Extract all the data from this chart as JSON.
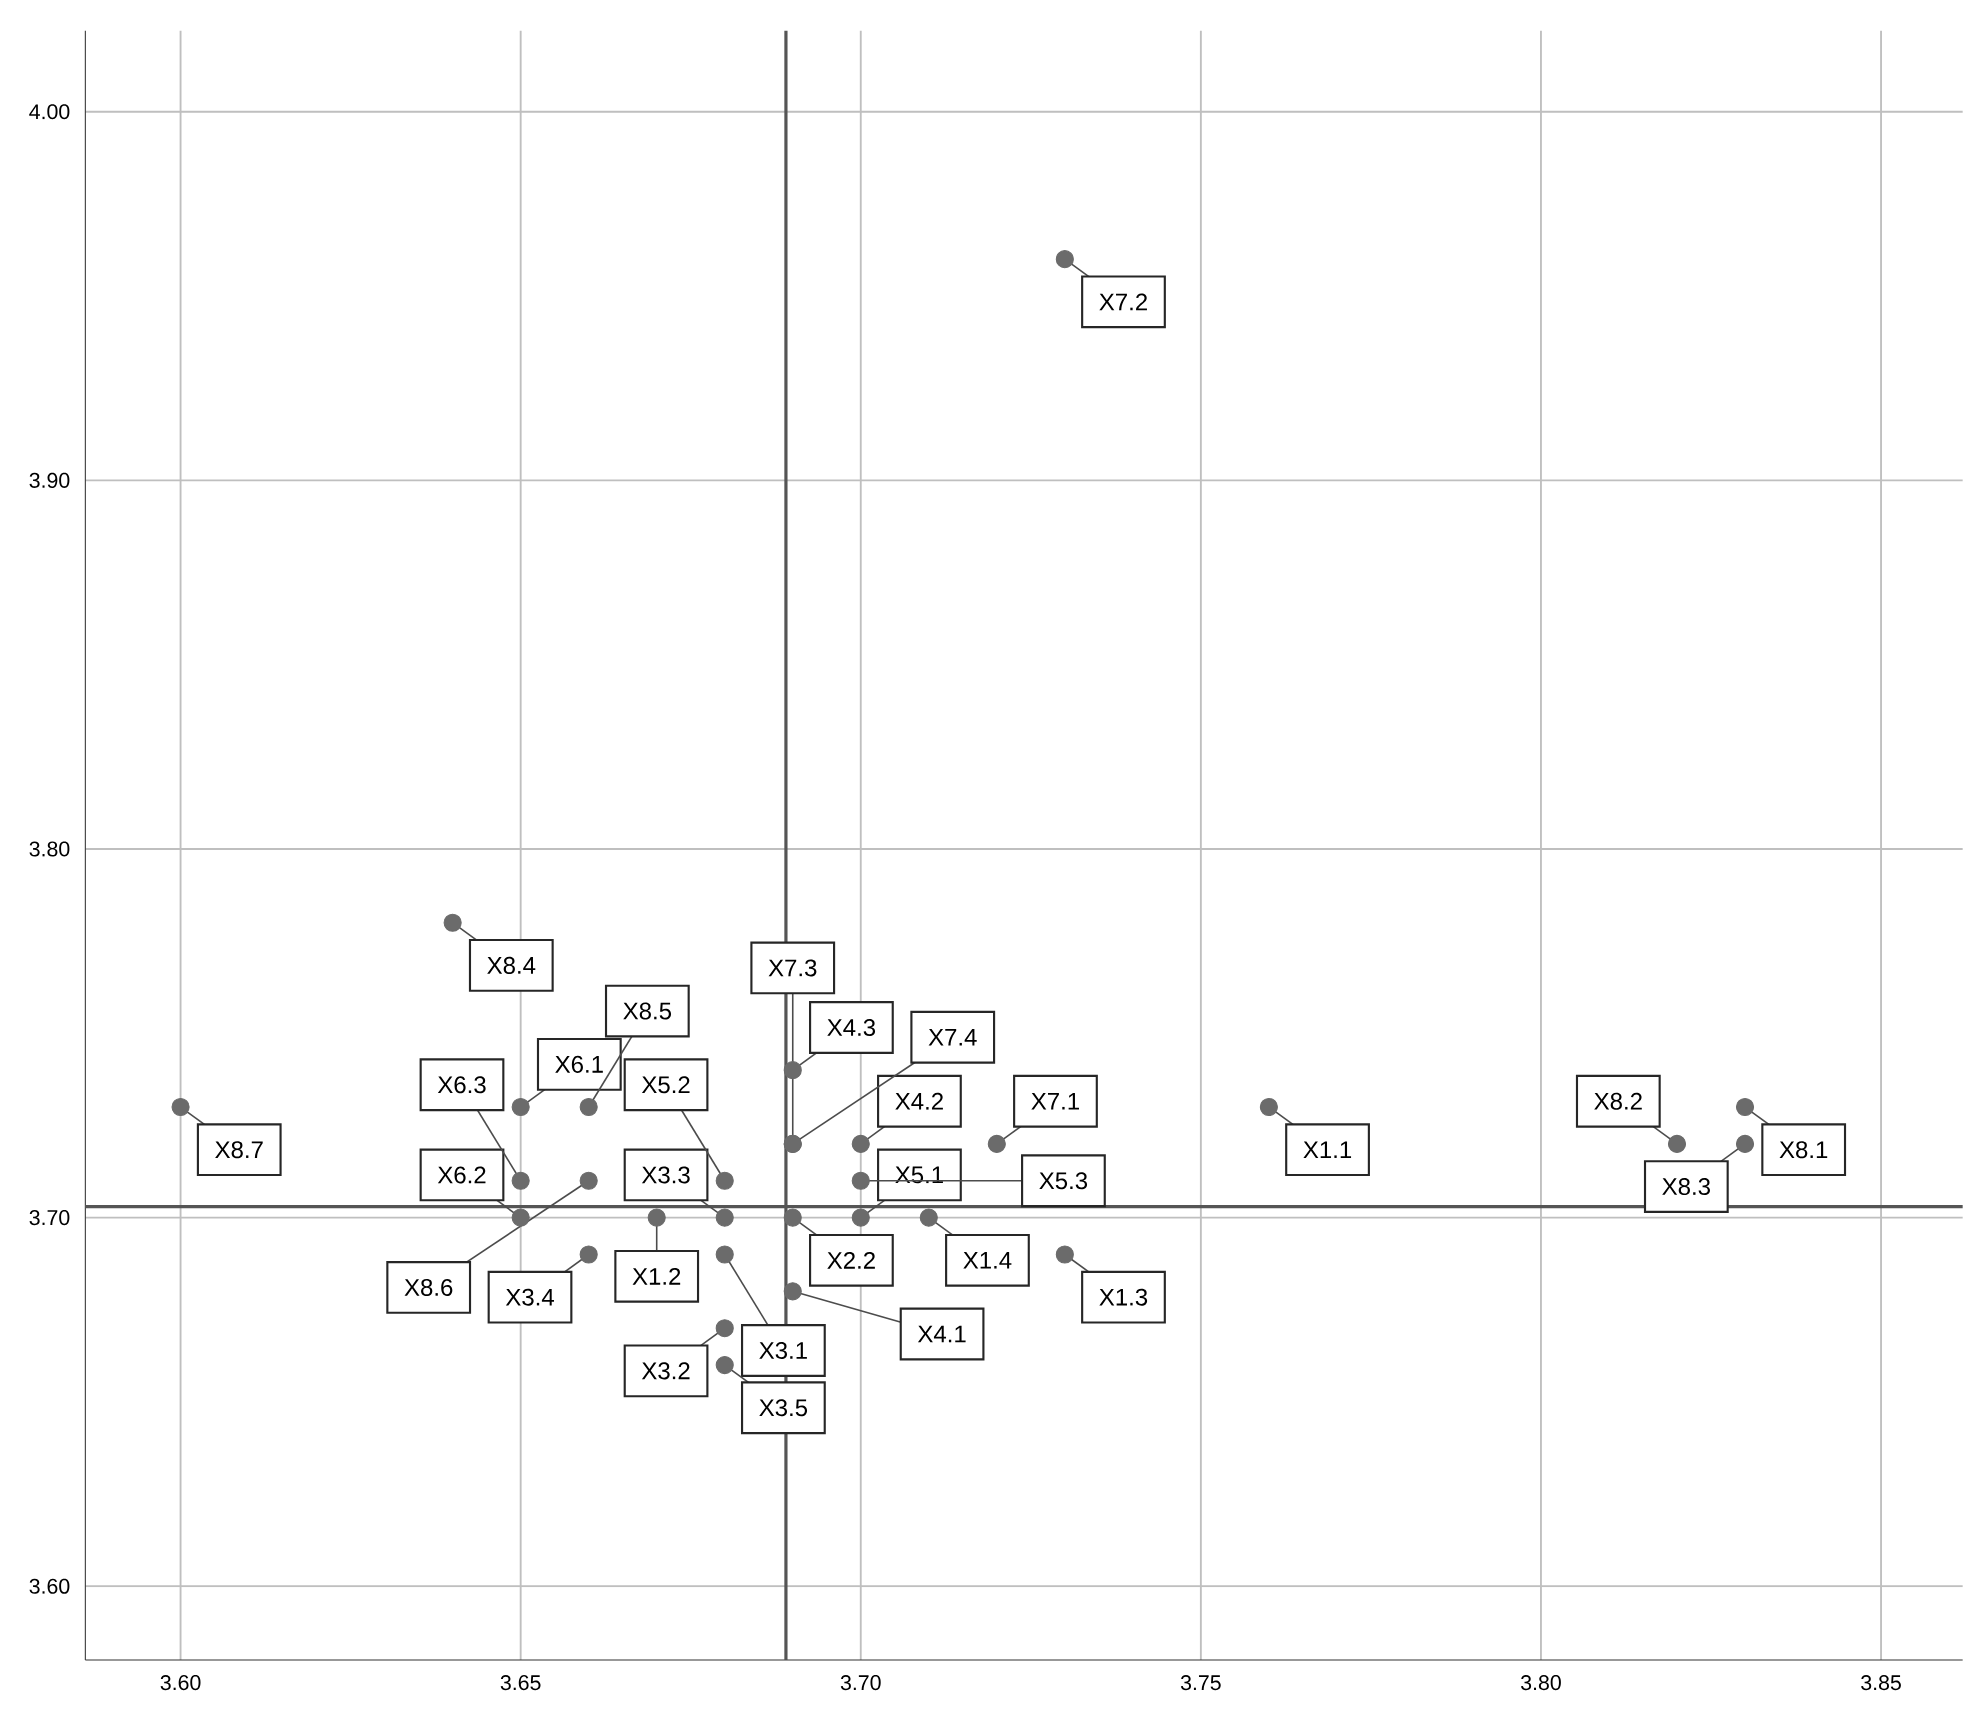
{
  "chart_data": {
    "type": "scatter",
    "color": "#6b6b6b",
    "marker": "circle",
    "grid": true,
    "x": [
      3.76,
      3.67,
      3.73,
      3.71,
      3.69,
      3.68,
      3.68,
      3.68,
      3.66,
      3.68,
      3.69,
      3.7,
      3.69,
      3.7,
      3.68,
      3.7,
      3.65,
      3.65,
      3.65,
      3.72,
      3.73,
      3.69,
      3.69,
      3.83,
      3.82,
      3.83,
      3.64,
      3.66,
      3.66,
      3.6
    ],
    "values": [
      3.73,
      3.7,
      3.69,
      3.7,
      3.7,
      3.69,
      3.67,
      3.7,
      3.69,
      3.66,
      3.68,
      3.72,
      3.74,
      3.7,
      3.71,
      3.71,
      3.73,
      3.7,
      3.71,
      3.72,
      3.96,
      3.72,
      3.72,
      3.73,
      3.72,
      3.72,
      3.78,
      3.73,
      3.71,
      3.73
    ],
    "value_labels": [
      "X1.1",
      "X1.2",
      "X1.3",
      "X1.4",
      "X2.2",
      "X3.1",
      "X3.2",
      "X3.3",
      "X3.4",
      "X3.5",
      "X4.1",
      "X4.2",
      "X4.3",
      "X5.1",
      "X5.2",
      "X5.3",
      "X6.1",
      "X6.2",
      "X6.3",
      "X7.1",
      "X7.2",
      "X7.3",
      "X7.4",
      "X8.1",
      "X8.2",
      "X8.3",
      "X8.4",
      "X8.5",
      "X8.6",
      "X8.7"
    ],
    "xlim": [
      3.586,
      3.862
    ],
    "ylim": [
      3.58,
      4.022
    ],
    "xticks": [
      {
        "value": 3.6,
        "label": "3.60"
      },
      {
        "value": 3.65,
        "label": "3.65"
      },
      {
        "value": 3.7,
        "label": "3.70"
      },
      {
        "value": 3.75,
        "label": "3.75"
      },
      {
        "value": 3.8,
        "label": "3.80"
      },
      {
        "value": 3.85,
        "label": "3.85"
      }
    ],
    "yticks": [
      {
        "value": 3.6,
        "label": "3.60"
      },
      {
        "value": 3.7,
        "label": "3.70"
      },
      {
        "value": 3.8,
        "label": "3.80"
      },
      {
        "value": 3.9,
        "label": "3.90"
      },
      {
        "value": 4.0,
        "label": "4.00"
      }
    ],
    "ref_lines": [
      {
        "axis": "x",
        "value": 3.689,
        "color": "#555555"
      },
      {
        "axis": "y",
        "value": 3.703,
        "color": "#555555"
      }
    ]
  }
}
